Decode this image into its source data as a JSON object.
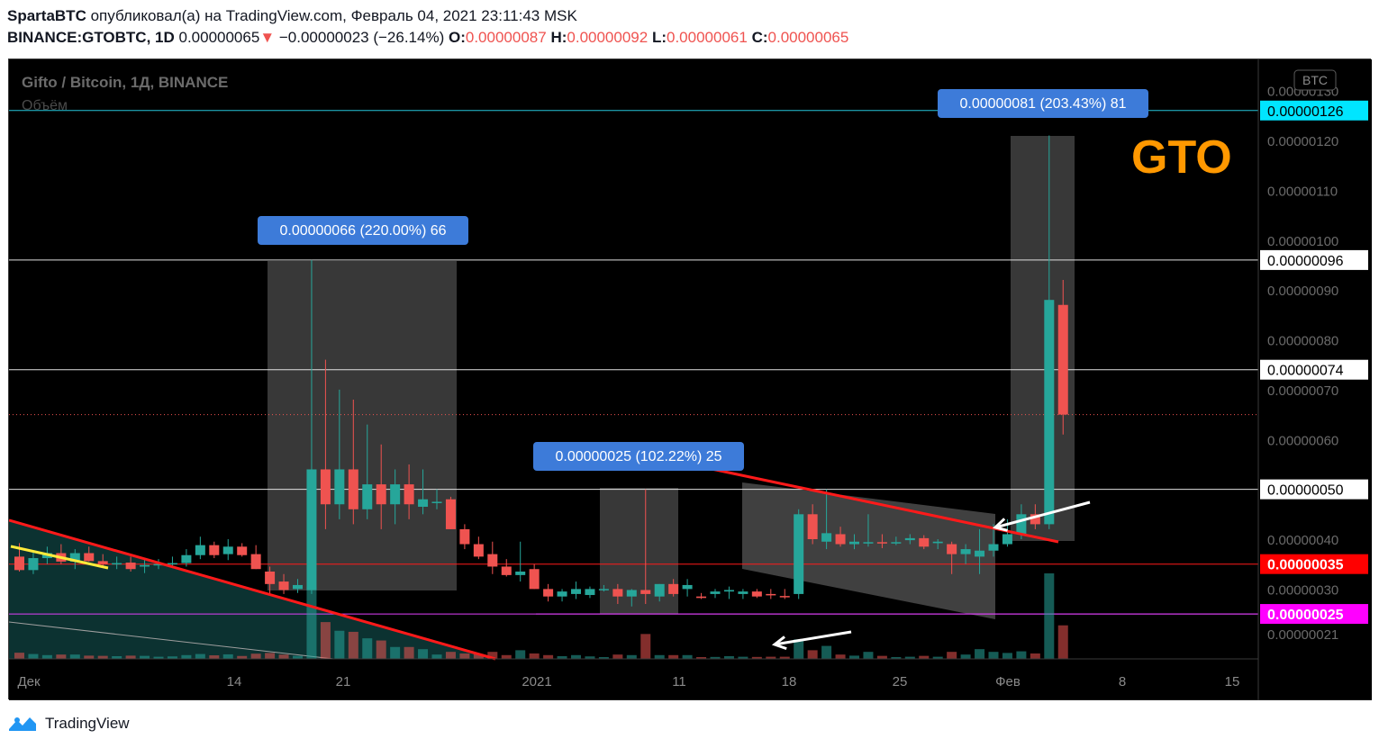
{
  "header": {
    "author": "SpartaBTC",
    "published_text": "опубликовал(а) на TradingView.com, Февраль 04, 2021 23:11:43 MSK",
    "symbol": "BINANCE:GTOBTC, 1D",
    "last_price": "0.00000065",
    "change_arrow": "▼",
    "change": "−0.00000023 (−26.14%)",
    "o_label": "O:",
    "o_value": "0.00000087",
    "h_label": "H:",
    "h_value": "0.00000092",
    "l_label": "L:",
    "l_value": "0.00000061",
    "c_label": "C:",
    "c_value": "0.00000065"
  },
  "legend": {
    "title": "Gifto / Bitcoin, 1Д, BINANCE",
    "volume_label": "Объём"
  },
  "currency_badge": "BTC",
  "watermark": "GTO",
  "footer": {
    "brand": "TradingView",
    "logo_icon": "tradingview-logo-icon"
  },
  "colors": {
    "up": "#26a69a",
    "down": "#ef5350",
    "background": "#000000",
    "label_blue": "#3d7bd9",
    "gto_orange": "#ff9800",
    "magenta": "#e040fb",
    "level_cyan": "#00e5ff",
    "red_level": "#ff0000"
  },
  "chart_data": {
    "type": "candlestick",
    "symbol": "GTOBTC",
    "exchange": "BINANCE",
    "timeframe": "1D",
    "y_axis_ticks": [
      "0.00000021",
      "0.00000030",
      "0.00000040",
      "0.00000050",
      "0.00000060",
      "0.00000070",
      "0.00000080",
      "0.00000090",
      "0.00000100",
      "0.00000110",
      "0.00000120",
      "0.00000130"
    ],
    "x_axis_ticks": [
      "Дек",
      "14",
      "21",
      "2021",
      "11",
      "18",
      "25",
      "Фев",
      "8",
      "15"
    ],
    "horizontal_levels": [
      {
        "value": "0.00000126",
        "label": "0.00000126",
        "style": "cyan"
      },
      {
        "value": "0.00000096",
        "label": "0.00000096",
        "style": "white"
      },
      {
        "value": "0.00000074",
        "label": "0.00000074",
        "style": "white"
      },
      {
        "value": "0.00000050",
        "label": "0.00000050",
        "style": "white"
      },
      {
        "value": "0.00000035",
        "label": "0.00000035",
        "style": "red"
      },
      {
        "value": "0.00000025",
        "label": "0.00000025",
        "style": "magenta"
      }
    ],
    "measurements": [
      {
        "text": "0.00000066 (220.00%) 66"
      },
      {
        "text": "0.00000025 (102.22%) 25"
      },
      {
        "text": "0.00000081 (203.43%) 81"
      }
    ],
    "candles": [
      {
        "o": 3.65e-07,
        "h": 3.92e-07,
        "l": 3.35e-07,
        "c": 3.38e-07
      },
      {
        "o": 3.38e-07,
        "h": 3.75e-07,
        "l": 3.3e-07,
        "c": 3.62e-07
      },
      {
        "o": 3.62e-07,
        "h": 3.85e-07,
        "l": 3.5e-07,
        "c": 3.72e-07
      },
      {
        "o": 3.72e-07,
        "h": 3.9e-07,
        "l": 3.5e-07,
        "c": 3.55e-07
      },
      {
        "o": 3.55e-07,
        "h": 3.8e-07,
        "l": 3.4e-07,
        "c": 3.72e-07
      },
      {
        "o": 3.72e-07,
        "h": 3.85e-07,
        "l": 3.55e-07,
        "c": 3.56e-07
      },
      {
        "o": 3.56e-07,
        "h": 3.7e-07,
        "l": 3.42e-07,
        "c": 3.5e-07
      },
      {
        "o": 3.5e-07,
        "h": 3.65e-07,
        "l": 3.4e-07,
        "c": 3.52e-07
      },
      {
        "o": 3.53e-07,
        "h": 3.65e-07,
        "l": 3.35e-07,
        "c": 3.4e-07
      },
      {
        "o": 3.45e-07,
        "h": 3.6e-07,
        "l": 3.32e-07,
        "c": 3.48e-07
      },
      {
        "o": 3.48e-07,
        "h": 3.6e-07,
        "l": 3.4e-07,
        "c": 3.5e-07
      },
      {
        "o": 3.5e-07,
        "h": 3.65e-07,
        "l": 3.42e-07,
        "c": 3.52e-07
      },
      {
        "o": 3.52e-07,
        "h": 3.8e-07,
        "l": 3.45e-07,
        "c": 3.68e-07
      },
      {
        "o": 3.68e-07,
        "h": 4.05e-07,
        "l": 3.6e-07,
        "c": 3.88e-07
      },
      {
        "o": 3.88e-07,
        "h": 3.95e-07,
        "l": 3.62e-07,
        "c": 3.68e-07
      },
      {
        "o": 3.7e-07,
        "h": 4e-07,
        "l": 3.58e-07,
        "c": 3.85e-07
      },
      {
        "o": 3.85e-07,
        "h": 3.92e-07,
        "l": 3.65e-07,
        "c": 3.68e-07
      },
      {
        "o": 3.7e-07,
        "h": 3.88e-07,
        "l": 3.4e-07,
        "c": 3.4e-07
      },
      {
        "o": 3.35e-07,
        "h": 3.45e-07,
        "l": 2.9e-07,
        "c": 3.1e-07
      },
      {
        "o": 3.15e-07,
        "h": 3.3e-07,
        "l": 2.9e-07,
        "c": 2.98e-07
      },
      {
        "o": 3e-07,
        "h": 3.2e-07,
        "l": 2.92e-07,
        "c": 3.08e-07
      },
      {
        "o": 2.98e-07,
        "h": 9.6e-07,
        "l": 2.9e-07,
        "c": 5.4e-07
      },
      {
        "o": 5.4e-07,
        "h": 7.6e-07,
        "l": 4.2e-07,
        "c": 4.7e-07
      },
      {
        "o": 4.7e-07,
        "h": 7e-07,
        "l": 4.4e-07,
        "c": 5.4e-07
      },
      {
        "o": 5.4e-07,
        "h": 6.8e-07,
        "l": 4.3e-07,
        "c": 4.6e-07
      },
      {
        "o": 4.6e-07,
        "h": 6.3e-07,
        "l": 4.4e-07,
        "c": 5.1e-07
      },
      {
        "o": 5.1e-07,
        "h": 5.9e-07,
        "l": 4.2e-07,
        "c": 4.7e-07
      },
      {
        "o": 4.7e-07,
        "h": 5.4e-07,
        "l": 4.3e-07,
        "c": 5.1e-07
      },
      {
        "o": 5.1e-07,
        "h": 5.5e-07,
        "l": 4.4e-07,
        "c": 4.7e-07
      },
      {
        "o": 4.65e-07,
        "h": 5.4e-07,
        "l": 4.5e-07,
        "c": 4.8e-07
      },
      {
        "o": 4.75e-07,
        "h": 5e-07,
        "l": 4.6e-07,
        "c": 4.75e-07
      },
      {
        "o": 4.8e-07,
        "h": 4.85e-07,
        "l": 4.2e-07,
        "c": 4.2e-07
      },
      {
        "o": 4.2e-07,
        "h": 4.3e-07,
        "l": 3.8e-07,
        "c": 3.9e-07
      },
      {
        "o": 3.9e-07,
        "h": 4.05e-07,
        "l": 3.6e-07,
        "c": 3.65e-07
      },
      {
        "o": 3.7e-07,
        "h": 3.95e-07,
        "l": 3.3e-07,
        "c": 3.45e-07
      },
      {
        "o": 3.45e-07,
        "h": 3.6e-07,
        "l": 3.25e-07,
        "c": 3.28e-07
      },
      {
        "o": 3.28e-07,
        "h": 3.95e-07,
        "l": 3.15e-07,
        "c": 3.35e-07
      },
      {
        "o": 3.4e-07,
        "h": 3.5e-07,
        "l": 3e-07,
        "c": 3e-07
      },
      {
        "o": 3e-07,
        "h": 3.1e-07,
        "l": 2.75e-07,
        "c": 2.85e-07
      },
      {
        "o": 2.85e-07,
        "h": 3e-07,
        "l": 2.75e-07,
        "c": 2.95e-07
      },
      {
        "o": 2.9e-07,
        "h": 3.15e-07,
        "l": 2.8e-07,
        "c": 3e-07
      },
      {
        "o": 2.88e-07,
        "h": 3.05e-07,
        "l": 2.82e-07,
        "c": 3e-07
      },
      {
        "o": 3e-07,
        "h": 3.08e-07,
        "l": 2.95e-07,
        "c": 3e-07
      },
      {
        "o": 3e-07,
        "h": 3.1e-07,
        "l": 2.7e-07,
        "c": 2.85e-07
      },
      {
        "o": 2.85e-07,
        "h": 3e-07,
        "l": 2.65e-07,
        "c": 2.98e-07
      },
      {
        "o": 2.98e-07,
        "h": 5e-07,
        "l": 2.7e-07,
        "c": 2.9e-07
      },
      {
        "o": 2.85e-07,
        "h": 3.1e-07,
        "l": 2.75e-07,
        "c": 3.1e-07
      },
      {
        "o": 3.1e-07,
        "h": 3.2e-07,
        "l": 2.85e-07,
        "c": 2.9e-07
      },
      {
        "o": 3e-07,
        "h": 3.2e-07,
        "l": 2.85e-07,
        "c": 3.08e-07
      },
      {
        "o": 2.85e-07,
        "h": 2.92e-07,
        "l": 2.8e-07,
        "c": 2.82e-07
      },
      {
        "o": 2.9e-07,
        "h": 3e-07,
        "l": 2.82e-07,
        "c": 2.95e-07
      },
      {
        "o": 2.95e-07,
        "h": 3.05e-07,
        "l": 2.8e-07,
        "c": 2.98e-07
      },
      {
        "o": 2.9e-07,
        "h": 3e-07,
        "l": 2.8e-07,
        "c": 2.95e-07
      },
      {
        "o": 2.95e-07,
        "h": 3e-07,
        "l": 2.82e-07,
        "c": 2.85e-07
      },
      {
        "o": 2.9e-07,
        "h": 3e-07,
        "l": 2.8e-07,
        "c": 2.88e-07
      },
      {
        "o": 2.86e-07,
        "h": 3e-07,
        "l": 2.8e-07,
        "c": 2.85e-07
      },
      {
        "o": 2.9e-07,
        "h": 4.6e-07,
        "l": 2.8e-07,
        "c": 4.5e-07
      },
      {
        "o": 4.5e-07,
        "h": 4.7e-07,
        "l": 3.9e-07,
        "c": 4e-07
      },
      {
        "o": 3.95e-07,
        "h": 5e-07,
        "l": 3.8e-07,
        "c": 4.12e-07
      },
      {
        "o": 4.1e-07,
        "h": 4.25e-07,
        "l": 3.85e-07,
        "c": 3.9e-07
      },
      {
        "o": 3.9e-07,
        "h": 4.1e-07,
        "l": 3.8e-07,
        "c": 3.95e-07
      },
      {
        "o": 3.92e-07,
        "h": 4.5e-07,
        "l": 3.85e-07,
        "c": 3.94e-07
      },
      {
        "o": 3.94e-07,
        "h": 4.1e-07,
        "l": 3.82e-07,
        "c": 3.93e-07
      },
      {
        "o": 3.94e-07,
        "h": 4.05e-07,
        "l": 3.88e-07,
        "c": 3.94e-07
      },
      {
        "o": 3.98e-07,
        "h": 4.1e-07,
        "l": 3.9e-07,
        "c": 4.02e-07
      },
      {
        "o": 4.02e-07,
        "h": 4.08e-07,
        "l": 3.8e-07,
        "c": 3.85e-07
      },
      {
        "o": 3.92e-07,
        "h": 4e-07,
        "l": 3.8e-07,
        "c": 3.95e-07
      },
      {
        "o": 3.9e-07,
        "h": 3.95e-07,
        "l": 3.3e-07,
        "c": 3.7e-07
      },
      {
        "o": 3.7e-07,
        "h": 3.9e-07,
        "l": 3.5e-07,
        "c": 3.8e-07
      },
      {
        "o": 3.65e-07,
        "h": 4.2e-07,
        "l": 3.3e-07,
        "c": 3.77e-07
      },
      {
        "o": 3.77e-07,
        "h": 4.3e-07,
        "l": 3.65e-07,
        "c": 3.9e-07
      },
      {
        "o": 3.9e-07,
        "h": 4.4e-07,
        "l": 3.85e-07,
        "c": 4.1e-07
      },
      {
        "o": 4.1e-07,
        "h": 4.7e-07,
        "l": 4e-07,
        "c": 4.5e-07
      },
      {
        "o": 4.5e-07,
        "h": 4.7e-07,
        "l": 4.2e-07,
        "c": 4.3e-07
      },
      {
        "o": 4.3e-07,
        "h": 1.21e-06,
        "l": 4.2e-07,
        "c": 8.8e-07
      },
      {
        "o": 8.7e-07,
        "h": 9.2e-07,
        "l": 6.1e-07,
        "c": 6.5e-07
      }
    ]
  }
}
